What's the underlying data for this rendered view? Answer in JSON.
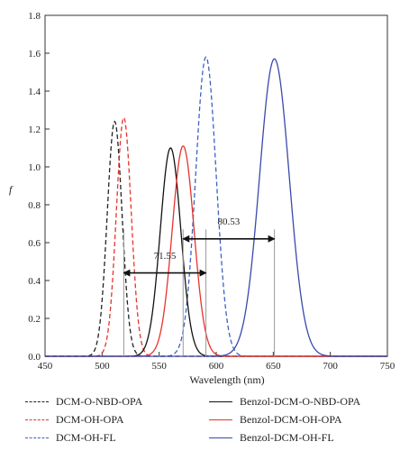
{
  "chart_data": {
    "type": "line",
    "xlabel": "Wavelength (nm)",
    "ylabel": "f",
    "xlim": [
      450,
      750
    ],
    "ylim": [
      0,
      1.8
    ],
    "xticks": [
      "450",
      "500",
      "550",
      "600",
      "650",
      "700",
      "750"
    ],
    "yticks": [
      "0.0",
      "0.2",
      "0.4",
      "0.6",
      "0.8",
      "1.0",
      "1.2",
      "1.4",
      "1.6",
      "1.8"
    ],
    "grid": false,
    "legend_position": "bottom",
    "series": [
      {
        "name": "DCM-O-NBD-OPA",
        "color": "#222222",
        "style": "dashed",
        "peak": 511,
        "height": 1.24,
        "width": 6.5
      },
      {
        "name": "DCM-OH-OPA",
        "color": "#e8322d",
        "style": "dashed",
        "peak": 519,
        "height": 1.26,
        "width": 6.5
      },
      {
        "name": "DCM-OH-FL",
        "color": "#3a63c4",
        "style": "dashed",
        "peak": 591,
        "height": 1.58,
        "width": 9
      },
      {
        "name": "Benzol-DCM-O-NBD-OPA",
        "color": "#111111",
        "style": "solid",
        "peak": 560,
        "height": 1.1,
        "width": 9
      },
      {
        "name": "Benzol-DCM-OH-OPA",
        "color": "#e8322d",
        "style": "solid",
        "peak": 571,
        "height": 1.11,
        "width": 9.5
      },
      {
        "name": "Benzol-DCM-OH-FL",
        "color": "#3949ab",
        "style": "solid",
        "peak": 651,
        "height": 1.57,
        "width": 13
      }
    ],
    "vlines": [
      519,
      571,
      591,
      651
    ],
    "annotations": [
      {
        "text": "80.53",
        "x_from": 571,
        "x_to": 651,
        "y": 0.62,
        "label_y": 0.68
      },
      {
        "text": "71.55",
        "x_from": 519,
        "x_to": 591,
        "y": 0.44,
        "label_y": 0.5
      }
    ]
  }
}
